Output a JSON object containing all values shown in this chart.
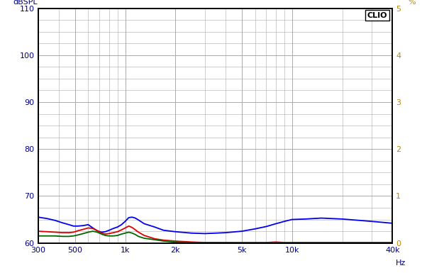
{
  "ylabel_left": "dBSPL",
  "ylabel_right": "%",
  "hz_label": "Hz",
  "clio_label": "CLIO",
  "ylim_left": [
    60,
    110
  ],
  "ylim_right": [
    0,
    5
  ],
  "yticks_left": [
    60,
    70,
    80,
    90,
    100,
    110
  ],
  "yticks_right": [
    0,
    1,
    2,
    3,
    4,
    5
  ],
  "xmin": 300,
  "xmax": 40000,
  "xtick_positions": [
    300,
    500,
    1000,
    2000,
    5000,
    10000,
    40000
  ],
  "xtick_labels": [
    "300",
    "500",
    "1k",
    "2k",
    "5k",
    "10k",
    "40k"
  ],
  "grid_color": "#aaaaaa",
  "bg_color": "#ffffff",
  "plot_bg_color": "#ffffff",
  "border_color": "#000000",
  "blue_color": "#0000ee",
  "red_color": "#dd0000",
  "green_color": "#006600",
  "tick_label_color": "#000080",
  "line_width": 1.3,
  "blue_data": {
    "freq": [
      300,
      340,
      380,
      420,
      460,
      490,
      520,
      560,
      600,
      640,
      680,
      720,
      760,
      800,
      850,
      900,
      950,
      1000,
      1050,
      1100,
      1150,
      1200,
      1300,
      1500,
      1700,
      2000,
      2500,
      3000,
      3500,
      4000,
      5000,
      6000,
      7000,
      8000,
      9000,
      10000,
      12000,
      15000,
      20000,
      30000,
      40000
    ],
    "level": [
      65.5,
      65.2,
      64.8,
      64.3,
      63.9,
      63.6,
      63.6,
      63.7,
      63.9,
      63.2,
      62.6,
      62.3,
      62.4,
      62.7,
      63.1,
      63.4,
      63.9,
      64.6,
      65.4,
      65.5,
      65.3,
      64.9,
      64.1,
      63.4,
      62.7,
      62.4,
      62.1,
      62.0,
      62.1,
      62.2,
      62.5,
      63.0,
      63.5,
      64.1,
      64.6,
      65.0,
      65.1,
      65.3,
      65.1,
      64.6,
      64.2
    ]
  },
  "red_data": {
    "freq": [
      300,
      340,
      380,
      420,
      460,
      490,
      520,
      560,
      600,
      640,
      680,
      720,
      760,
      800,
      850,
      900,
      950,
      1000,
      1050,
      1100,
      1150,
      1200,
      1300,
      1500,
      1700,
      2000,
      2500,
      3000,
      3500,
      4000,
      5000,
      6000,
      7000,
      8000,
      9000,
      10000,
      12000,
      15000,
      20000,
      30000,
      40000
    ],
    "level": [
      62.5,
      62.4,
      62.3,
      62.2,
      62.2,
      62.3,
      62.6,
      62.9,
      63.2,
      63.1,
      62.6,
      62.1,
      61.9,
      62.0,
      62.2,
      62.4,
      62.8,
      63.2,
      63.6,
      63.3,
      62.8,
      62.3,
      61.6,
      60.9,
      60.6,
      60.4,
      60.2,
      60.1,
      60.1,
      60.1,
      60.1,
      60.1,
      60.1,
      60.2,
      60.1,
      60.1,
      60.1,
      60.1,
      60.1,
      60.1,
      60.1
    ]
  },
  "green_data": {
    "freq": [
      300,
      340,
      380,
      420,
      460,
      490,
      520,
      560,
      600,
      640,
      680,
      720,
      760,
      800,
      850,
      900,
      950,
      1000,
      1050,
      1100,
      1150,
      1200,
      1300,
      1500,
      1700,
      2000,
      2500,
      3000,
      3500,
      4000,
      5000,
      6000,
      7000,
      8000,
      9000,
      10000,
      12000,
      15000,
      20000,
      30000,
      40000
    ],
    "level": [
      61.5,
      61.5,
      61.5,
      61.4,
      61.4,
      61.5,
      61.7,
      62.0,
      62.3,
      62.5,
      62.3,
      61.9,
      61.6,
      61.5,
      61.5,
      61.6,
      61.9,
      62.1,
      62.3,
      62.1,
      61.8,
      61.4,
      61.0,
      60.7,
      60.4,
      60.2,
      60.1,
      60.1,
      60.1,
      60.1,
      60.0,
      60.0,
      60.0,
      60.0,
      60.0,
      60.0,
      60.0,
      60.0,
      60.0,
      60.0,
      60.0
    ]
  }
}
